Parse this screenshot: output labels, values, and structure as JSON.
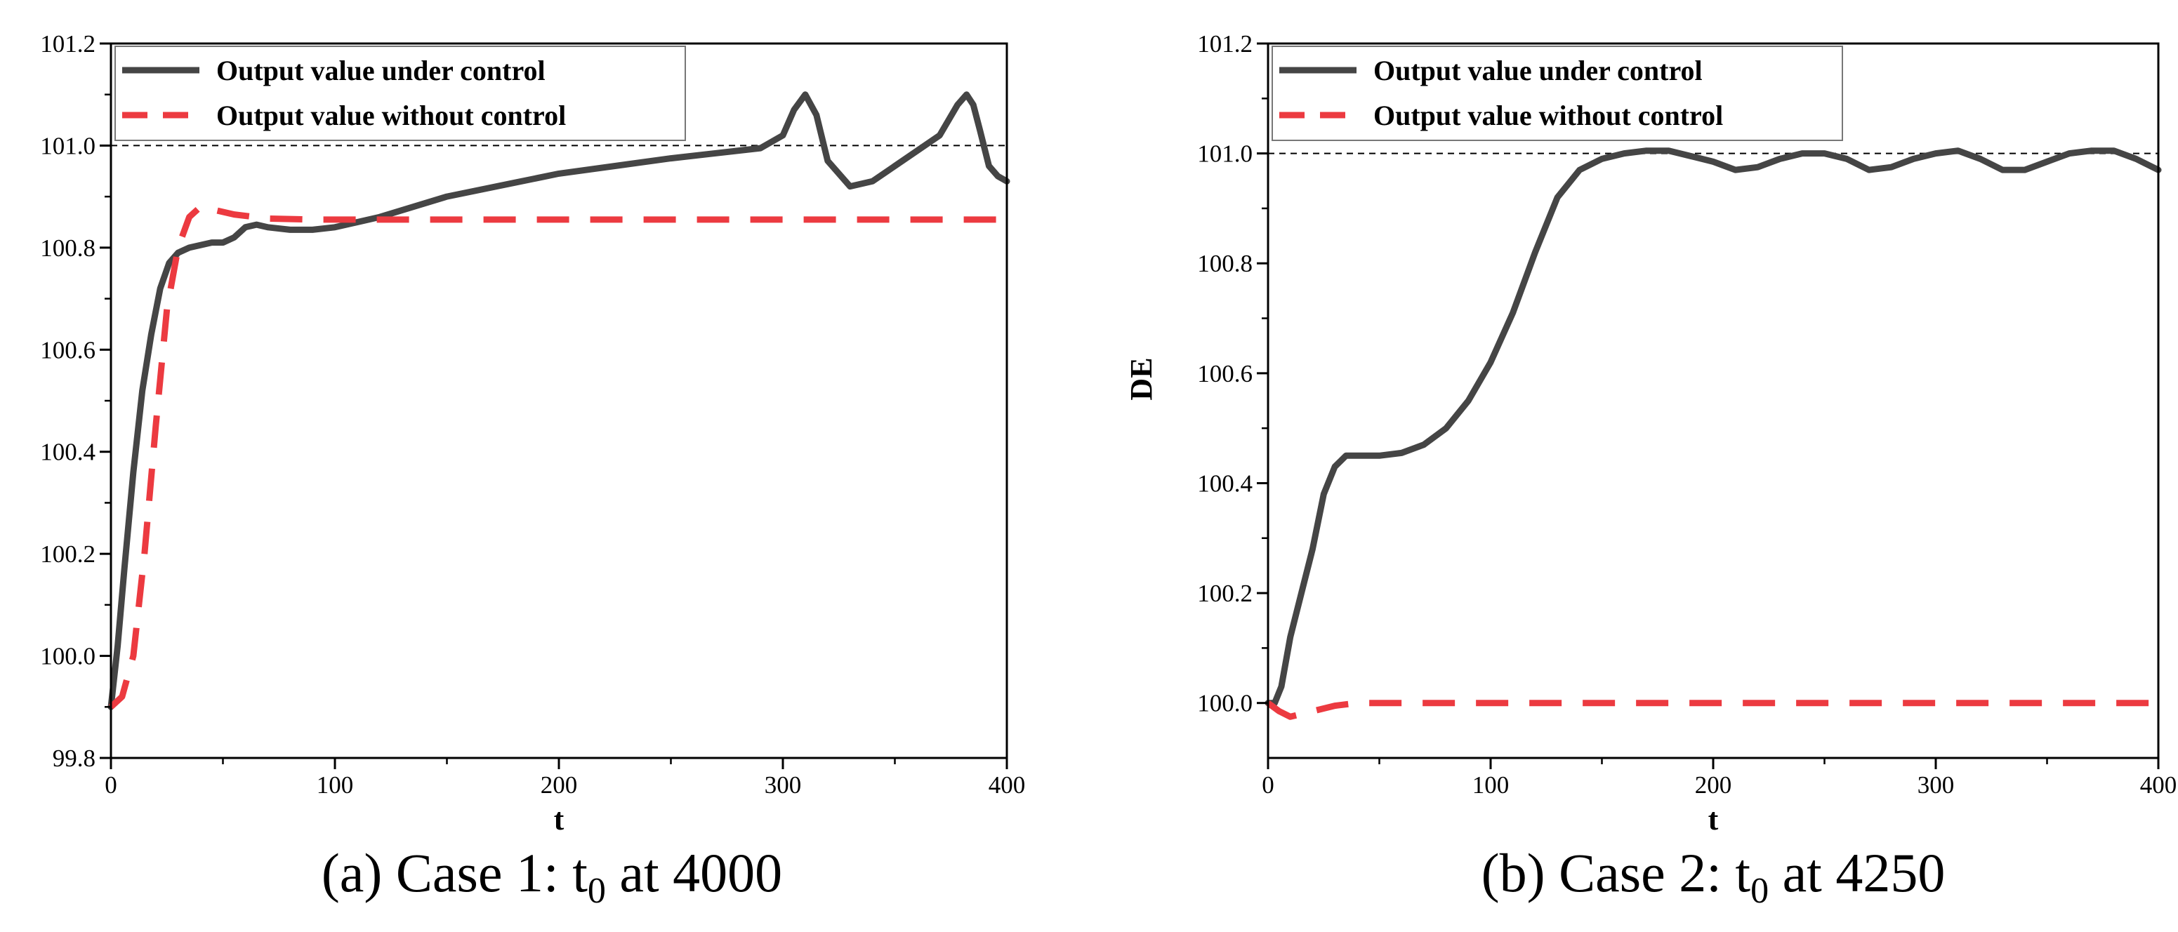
{
  "chart_data": [
    {
      "type": "line",
      "caption": {
        "prefix": "(a) Case 1: t",
        "sub": "0",
        "suffix": " at 4000"
      },
      "xlabel": "t",
      "ylabel": "",
      "xlim": [
        0,
        400
      ],
      "ylim": [
        99.8,
        101.2
      ],
      "xticks": [
        0,
        100,
        200,
        300,
        400
      ],
      "yticks": [
        99.8,
        100.0,
        100.2,
        100.4,
        100.6,
        100.8,
        101.0,
        101.2
      ],
      "reference_line": 101.0,
      "legend": "top-left",
      "series": [
        {
          "name": "Output value under control",
          "color": "#454545",
          "style": "solid",
          "x": [
            0,
            3,
            6,
            10,
            14,
            18,
            22,
            26,
            30,
            35,
            40,
            45,
            50,
            55,
            60,
            65,
            70,
            80,
            90,
            100,
            120,
            150,
            200,
            250,
            290,
            300,
            305,
            310,
            315,
            320,
            330,
            340,
            350,
            370,
            378,
            382,
            385,
            388,
            392,
            396,
            400
          ],
          "y": [
            99.9,
            100.02,
            100.17,
            100.36,
            100.52,
            100.63,
            100.72,
            100.77,
            100.79,
            100.8,
            100.805,
            100.81,
            100.81,
            100.82,
            100.84,
            100.845,
            100.84,
            100.835,
            100.835,
            100.84,
            100.86,
            100.9,
            100.945,
            100.975,
            100.995,
            101.02,
            101.07,
            101.1,
            101.06,
            100.97,
            100.92,
            100.93,
            100.96,
            101.02,
            101.08,
            101.1,
            101.08,
            101.03,
            100.96,
            100.94,
            100.93
          ]
        },
        {
          "name": "Output value without control",
          "color": "#EC3A40",
          "style": "dashed",
          "x": [
            0,
            5,
            10,
            15,
            20,
            25,
            30,
            35,
            40,
            45,
            55,
            70,
            90,
            120,
            200,
            300,
            400
          ],
          "y": [
            99.9,
            99.92,
            100.0,
            100.2,
            100.45,
            100.68,
            100.8,
            100.86,
            100.88,
            100.875,
            100.865,
            100.857,
            100.855,
            100.855,
            100.855,
            100.855,
            100.855
          ]
        }
      ]
    },
    {
      "type": "line",
      "caption": {
        "prefix": "(b) Case 2: t",
        "sub": "0",
        "suffix": " at 4250"
      },
      "xlabel": "t",
      "ylabel": "DE",
      "xlim": [
        0,
        400
      ],
      "ylim": [
        99.9,
        101.2
      ],
      "xticks": [
        0,
        100,
        200,
        300,
        400
      ],
      "yticks": [
        100.0,
        100.2,
        100.4,
        100.6,
        100.8,
        101.0,
        101.2
      ],
      "reference_line": 101.0,
      "legend": "top-left",
      "series": [
        {
          "name": "Output value under control",
          "color": "#454545",
          "style": "solid",
          "x": [
            0,
            3,
            6,
            10,
            15,
            20,
            25,
            30,
            35,
            40,
            45,
            50,
            60,
            70,
            80,
            90,
            100,
            110,
            120,
            130,
            140,
            150,
            160,
            170,
            180,
            190,
            200,
            210,
            220,
            230,
            240,
            250,
            260,
            270,
            280,
            290,
            300,
            310,
            320,
            330,
            340,
            350,
            360,
            370,
            380,
            390,
            400
          ],
          "y": [
            100.0,
            100.0,
            100.03,
            100.12,
            100.2,
            100.28,
            100.38,
            100.43,
            100.45,
            100.45,
            100.45,
            100.45,
            100.455,
            100.47,
            100.5,
            100.55,
            100.62,
            100.71,
            100.82,
            100.92,
            100.97,
            100.99,
            101.0,
            101.005,
            101.005,
            100.995,
            100.985,
            100.97,
            100.975,
            100.99,
            101.0,
            101.0,
            100.99,
            100.97,
            100.975,
            100.99,
            101.0,
            101.005,
            100.99,
            100.97,
            100.97,
            100.985,
            101.0,
            101.005,
            101.005,
            100.99,
            100.97
          ]
        },
        {
          "name": "Output value without control",
          "color": "#EC3A40",
          "style": "dashed",
          "x": [
            0,
            5,
            10,
            15,
            20,
            30,
            40,
            60,
            100,
            200,
            300,
            400
          ],
          "y": [
            100.0,
            99.985,
            99.975,
            99.98,
            99.985,
            99.995,
            100.0,
            100.0,
            100.0,
            100.0,
            100.0,
            100.0
          ]
        }
      ]
    }
  ]
}
